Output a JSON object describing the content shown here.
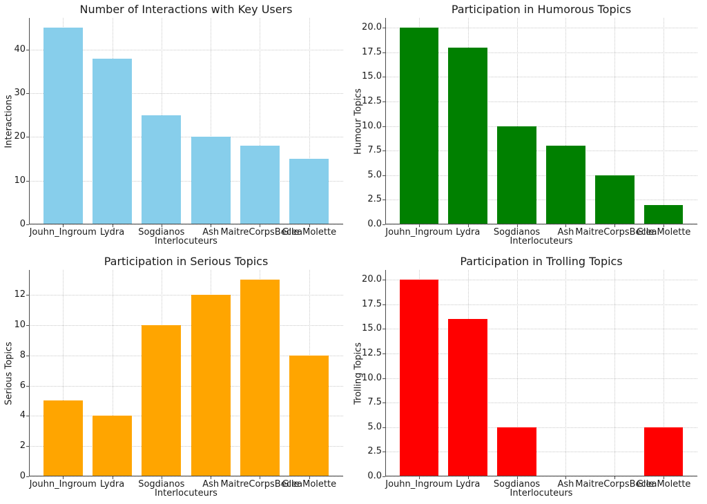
{
  "figure": {
    "background": "#ffffff",
    "grid_color": "#c8c8c8",
    "spine_color": "#4a4a4a",
    "text_color": "#1a1a1a"
  },
  "chart_data": [
    {
      "type": "bar",
      "title": "Number of Interactions with Key Users",
      "xlabel": "Interlocuteurs",
      "ylabel": "Interactions",
      "categories": [
        "Jouhn_Ingroum",
        "Lydra",
        "Sogdianos",
        "Ash",
        "MaitreCorpsBecle",
        "GleaMolette"
      ],
      "values": [
        45,
        38,
        25,
        20,
        18,
        15
      ],
      "bar_color": "#87CEEB",
      "ylim": [
        0,
        47.25
      ],
      "ytick_labels": [
        "0",
        "10",
        "20",
        "30",
        "40"
      ],
      "grid": "dotted, both axes",
      "legend": "none"
    },
    {
      "type": "bar",
      "title": "Participation in Humorous Topics",
      "xlabel": "Interlocuteurs",
      "ylabel": "Humour Topics",
      "categories": [
        "Jouhn_Ingroum",
        "Lydra",
        "Sogdianos",
        "Ash",
        "MaitreCorpsBecle",
        "GleaMolette"
      ],
      "values": [
        20,
        18,
        10,
        8,
        5,
        2
      ],
      "bar_color": "#008000",
      "ylim": [
        0,
        21
      ],
      "ytick_labels": [
        "0.0",
        "2.5",
        "5.0",
        "7.5",
        "10.0",
        "12.5",
        "15.0",
        "17.5",
        "20.0"
      ],
      "grid": "dotted, both axes",
      "legend": "none"
    },
    {
      "type": "bar",
      "title": "Participation in Serious Topics",
      "xlabel": "Interlocuteurs",
      "ylabel": "Serious Topics",
      "categories": [
        "Jouhn_Ingroum",
        "Lydra",
        "Sogdianos",
        "Ash",
        "MaitreCorpsBecle",
        "GleaMolette"
      ],
      "values": [
        5,
        4,
        10,
        12,
        13,
        8
      ],
      "bar_color": "#FFA500",
      "ylim": [
        0,
        13.65
      ],
      "ytick_labels": [
        "0",
        "2",
        "4",
        "6",
        "8",
        "10",
        "12"
      ],
      "grid": "dotted, both axes",
      "legend": "none"
    },
    {
      "type": "bar",
      "title": "Participation in Trolling Topics",
      "xlabel": "Interlocuteurs",
      "ylabel": "Trolling Topics",
      "categories": [
        "Jouhn_Ingroum",
        "Lydra",
        "Sogdianos",
        "Ash",
        "MaitreCorpsBecle",
        "GleaMolette"
      ],
      "values": [
        20,
        16,
        5,
        0,
        0,
        5
      ],
      "bar_color": "#FF0000",
      "ylim": [
        0,
        21
      ],
      "ytick_labels": [
        "0.0",
        "2.5",
        "5.0",
        "7.5",
        "10.0",
        "12.5",
        "15.0",
        "17.5",
        "20.0"
      ],
      "grid": "dotted, both axes",
      "legend": "none"
    }
  ]
}
